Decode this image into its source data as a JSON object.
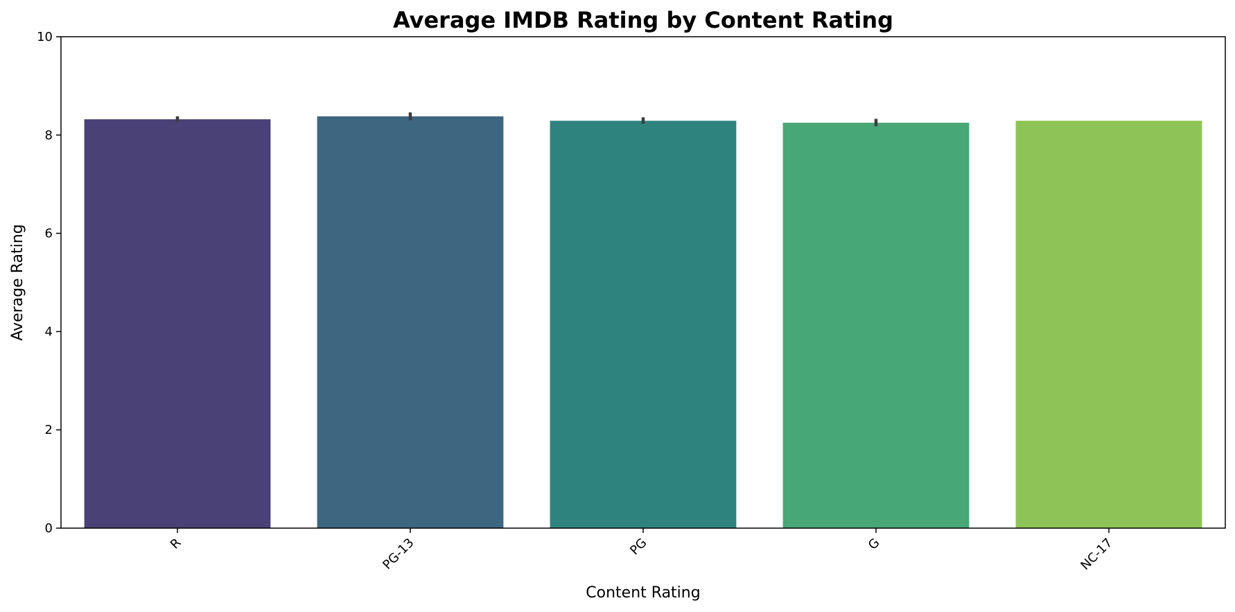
{
  "chart_data": {
    "type": "bar",
    "title": "Average IMDB Rating by Content Rating",
    "xlabel": "Content Rating",
    "ylabel": "Average Rating",
    "categories": [
      "R",
      "PG-13",
      "PG",
      "G",
      "NC-17"
    ],
    "values": [
      8.32,
      8.38,
      8.29,
      8.25,
      8.29
    ],
    "error_low": [
      8.27,
      8.3,
      8.23,
      8.18,
      null
    ],
    "error_high": [
      8.38,
      8.46,
      8.36,
      8.33,
      null
    ],
    "colors": [
      "#4a4177",
      "#3d6680",
      "#2f837e",
      "#47a777",
      "#8ec457"
    ],
    "error_color": "#3d3d3d",
    "ylim": [
      0,
      10
    ],
    "yticks": [
      "0",
      "2",
      "4",
      "6",
      "8",
      "10"
    ],
    "grid": false,
    "xtick_rotation_deg": 45
  }
}
